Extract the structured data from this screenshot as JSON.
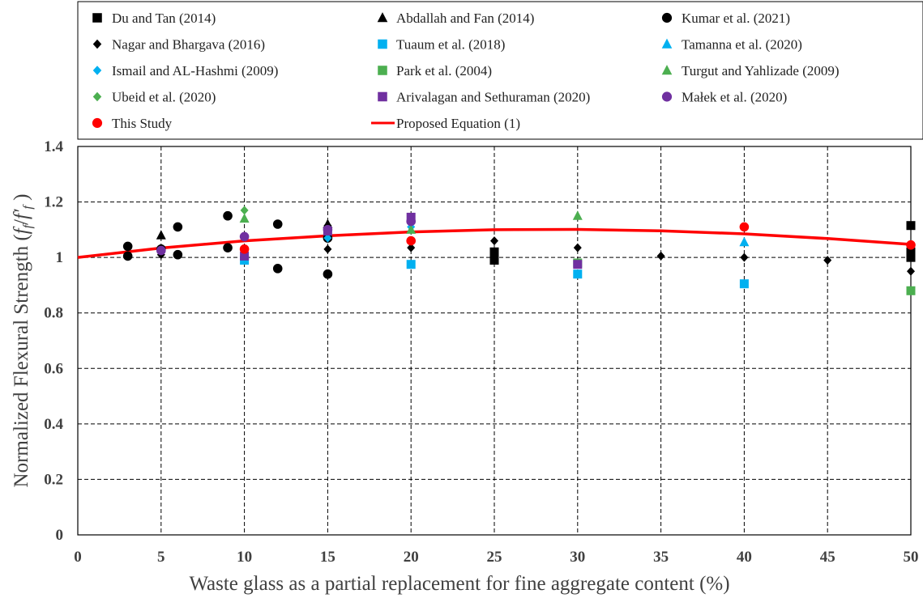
{
  "chart_data": {
    "type": "scatter",
    "title": "",
    "xlabel": "Waste glass as a partial replacement for fine aggregate content (%)",
    "ylabel": "Normalized Flexural Strength (f_f / f′_f )",
    "ylabel_parts": {
      "prefix": "Normalized Flexural Strength (",
      "f1": "f",
      "s1": "f",
      "slash": "/",
      "f2": "f′",
      "s2": "f",
      "suffix": " )"
    },
    "xlim": [
      0,
      50
    ],
    "ylim": [
      0,
      1.4
    ],
    "x_ticks": [
      0,
      5,
      10,
      15,
      20,
      25,
      30,
      35,
      40,
      45,
      50
    ],
    "y_ticks": [
      0,
      0.2,
      0.4,
      0.6,
      0.8,
      1,
      1.2,
      1.4
    ],
    "x_tick_labels": [
      "0",
      "5",
      "10",
      "15",
      "20",
      "25",
      "30",
      "35",
      "40",
      "45",
      "50"
    ],
    "y_tick_labels": [
      "0",
      "0.2",
      "0.4",
      "0.6",
      "0.8",
      "1",
      "1.2",
      "1.4"
    ],
    "grid": true,
    "legend_position": "top",
    "series": [
      {
        "name": "Du and Tan (2014)",
        "marker": "square",
        "color": "#000000",
        "points": [
          [
            25,
            1.02
          ],
          [
            25,
            0.99
          ],
          [
            50,
            1.115
          ],
          [
            50,
            1.02
          ],
          [
            50,
            1.0
          ]
        ]
      },
      {
        "name": "Abdallah and Fan (2014)",
        "marker": "triangle",
        "color": "#000000",
        "points": [
          [
            5,
            1.08
          ],
          [
            15,
            1.12
          ]
        ]
      },
      {
        "name": "Kumar et al. (2021)",
        "marker": "circle",
        "color": "#000000",
        "points": [
          [
            3,
            1.04
          ],
          [
            3,
            1.005
          ],
          [
            5,
            1.03
          ],
          [
            6,
            1.11
          ],
          [
            6,
            1.01
          ],
          [
            9,
            1.15
          ],
          [
            9,
            1.035
          ],
          [
            12,
            1.12
          ],
          [
            12,
            0.96
          ],
          [
            15,
            0.94
          ],
          [
            15,
            1.07
          ]
        ]
      },
      {
        "name": "Nagar and Bhargava (2016)",
        "marker": "diamond",
        "color": "#000000",
        "points": [
          [
            5,
            1.01
          ],
          [
            10,
            1.02
          ],
          [
            15,
            1.03
          ],
          [
            15,
            1.115
          ],
          [
            20,
            1.035
          ],
          [
            25,
            1.06
          ],
          [
            30,
            1.035
          ],
          [
            35,
            1.005
          ],
          [
            40,
            1.0
          ],
          [
            45,
            0.99
          ],
          [
            50,
            0.95
          ]
        ]
      },
      {
        "name": "Tuaum  et al. (2018)",
        "marker": "square",
        "color": "#00b0f0",
        "points": [
          [
            10,
            0.99
          ],
          [
            20,
            0.975
          ],
          [
            30,
            0.94
          ],
          [
            40,
            0.905
          ]
        ]
      },
      {
        "name": "Tamanna et al. (2020)",
        "marker": "triangle",
        "color": "#00b0f0",
        "points": [
          [
            40,
            1.055
          ]
        ]
      },
      {
        "name": "Ismail and AL-Hashmi (2009)",
        "marker": "diamond",
        "color": "#00b0f0",
        "points": [
          [
            15,
            1.07
          ],
          [
            20,
            1.11
          ]
        ]
      },
      {
        "name": "Park et al. (2004)",
        "marker": "square",
        "color": "#4caf50",
        "points": [
          [
            30,
            0.98
          ],
          [
            50,
            0.88
          ]
        ]
      },
      {
        "name": "Turgut and Yahlizade (2009)",
        "marker": "triangle",
        "color": "#4caf50",
        "points": [
          [
            10,
            1.14
          ],
          [
            20,
            1.1
          ],
          [
            30,
            1.15
          ]
        ]
      },
      {
        "name": "Ubeid et al. (2020)",
        "marker": "diamond",
        "color": "#4caf50",
        "points": [
          [
            10,
            1.17
          ]
        ]
      },
      {
        "name": "Arivalagan and Sethuraman (2020)",
        "marker": "square",
        "color": "#7030a0",
        "points": [
          [
            10,
            1.005
          ],
          [
            15,
            1.095
          ],
          [
            20,
            1.145
          ],
          [
            30,
            0.975
          ]
        ]
      },
      {
        "name": "Małek et al. (2020)",
        "marker": "circle",
        "color": "#7030a0",
        "points": [
          [
            5,
            1.025
          ],
          [
            10,
            1.075
          ],
          [
            15,
            1.1
          ],
          [
            20,
            1.13
          ]
        ]
      },
      {
        "name": "This Study",
        "marker": "circle",
        "color": "#ff0000",
        "points": [
          [
            10,
            1.03
          ],
          [
            20,
            1.06
          ],
          [
            40,
            1.11
          ],
          [
            50,
            1.045
          ]
        ]
      },
      {
        "name": "Proposed Equation (1)",
        "marker": "line",
        "color": "#ff0000",
        "curve": [
          [
            0,
            1.0
          ],
          [
            5,
            1.034
          ],
          [
            10,
            1.06
          ],
          [
            15,
            1.078
          ],
          [
            20,
            1.092
          ],
          [
            25,
            1.1
          ],
          [
            30,
            1.101
          ],
          [
            35,
            1.096
          ],
          [
            40,
            1.085
          ],
          [
            45,
            1.068
          ],
          [
            50,
            1.047
          ]
        ]
      }
    ]
  }
}
